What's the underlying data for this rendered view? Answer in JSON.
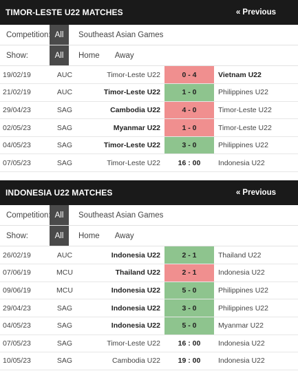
{
  "panels": [
    {
      "title": "TIMOR-LESTE U22 MATCHES",
      "prev_label": "« Previous",
      "competition_label": "Competition:",
      "competition_options": [
        "All",
        "Southeast Asian Games"
      ],
      "show_label": "Show:",
      "show_options": [
        "All",
        "Home",
        "Away"
      ],
      "matches": [
        {
          "date": "19/02/19",
          "comp": "AUC",
          "home": "Timor-Leste U22",
          "score": "0 - 4",
          "away": "Vietnam U22",
          "bold": "away",
          "result": "loss"
        },
        {
          "date": "21/02/19",
          "comp": "AUC",
          "home": "Timor-Leste U22",
          "score": "1 - 0",
          "away": "Philippines U22",
          "bold": "home",
          "result": "win"
        },
        {
          "date": "29/04/23",
          "comp": "SAG",
          "home": "Cambodia U22",
          "score": "4 - 0",
          "away": "Timor-Leste U22",
          "bold": "home",
          "result": "loss"
        },
        {
          "date": "02/05/23",
          "comp": "SAG",
          "home": "Myanmar U22",
          "score": "1 - 0",
          "away": "Timor-Leste U22",
          "bold": "home",
          "result": "loss"
        },
        {
          "date": "04/05/23",
          "comp": "SAG",
          "home": "Timor-Leste U22",
          "score": "3 - 0",
          "away": "Philippines U22",
          "bold": "home",
          "result": "win"
        },
        {
          "date": "07/05/23",
          "comp": "SAG",
          "home": "Timor-Leste U22",
          "score": "16 : 00",
          "away": "Indonesia U22",
          "bold": "none",
          "result": "upcoming"
        }
      ]
    },
    {
      "title": "INDONESIA U22 MATCHES",
      "prev_label": "« Previous",
      "competition_label": "Competition:",
      "competition_options": [
        "All",
        "Southeast Asian Games"
      ],
      "show_label": "Show:",
      "show_options": [
        "All",
        "Home",
        "Away"
      ],
      "matches": [
        {
          "date": "26/02/19",
          "comp": "AUC",
          "home": "Indonesia U22",
          "score": "2 - 1",
          "away": "Thailand U22",
          "bold": "home",
          "result": "win"
        },
        {
          "date": "07/06/19",
          "comp": "MCU",
          "home": "Thailand U22",
          "score": "2 - 1",
          "away": "Indonesia U22",
          "bold": "home",
          "result": "loss"
        },
        {
          "date": "09/06/19",
          "comp": "MCU",
          "home": "Indonesia U22",
          "score": "5 - 0",
          "away": "Philippines U22",
          "bold": "home",
          "result": "win"
        },
        {
          "date": "29/04/23",
          "comp": "SAG",
          "home": "Indonesia U22",
          "score": "3 - 0",
          "away": "Philippines U22",
          "bold": "home",
          "result": "win"
        },
        {
          "date": "04/05/23",
          "comp": "SAG",
          "home": "Indonesia U22",
          "score": "5 - 0",
          "away": "Myanmar U22",
          "bold": "home",
          "result": "win"
        },
        {
          "date": "07/05/23",
          "comp": "SAG",
          "home": "Timor-Leste U22",
          "score": "16 : 00",
          "away": "Indonesia U22",
          "bold": "none",
          "result": "upcoming"
        },
        {
          "date": "10/05/23",
          "comp": "SAG",
          "home": "Cambodia U22",
          "score": "19 : 00",
          "away": "Indonesia U22",
          "bold": "none",
          "result": "upcoming"
        }
      ]
    }
  ],
  "colors": {
    "win": "#8ec48e",
    "loss": "#f08f8f",
    "header": "#1a1a1a"
  }
}
